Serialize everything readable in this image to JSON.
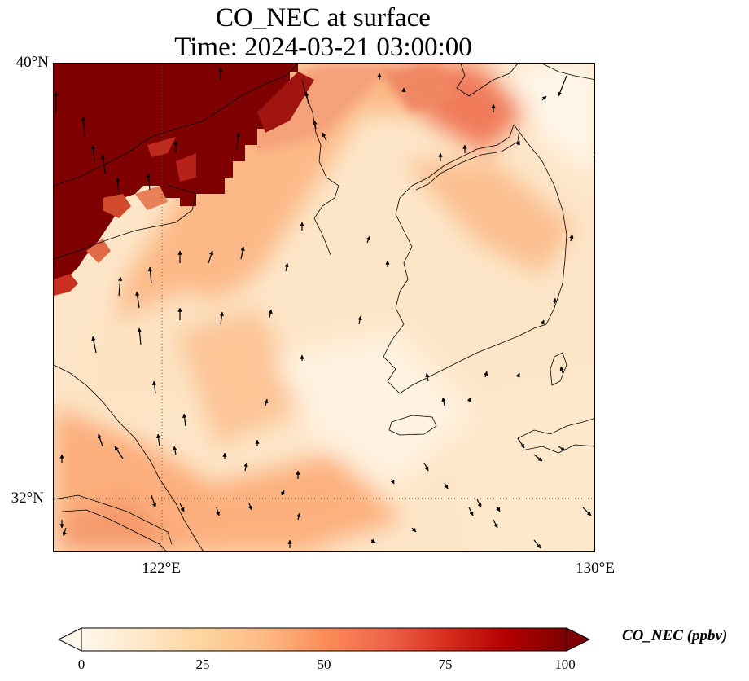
{
  "title": {
    "line1": "CO_NEC at surface",
    "line2": "Time: 2024-03-21 03:00:00"
  },
  "map": {
    "lat_labels": [
      "40°N",
      "32°N"
    ],
    "lon_labels": [
      "122°E",
      "130°E"
    ],
    "extent": {
      "lon_min": 120,
      "lon_max": 130,
      "lat_min": 31,
      "lat_max": 40
    },
    "gridlines": {
      "lon": [
        122
      ],
      "lat": [
        32
      ],
      "style": "dotted"
    },
    "field_colors": {
      "saturated": "#7f0000",
      "high": "#d7301f",
      "mid": "#fc8d59",
      "low": "#fdd49e",
      "bg": "#fff7ec"
    },
    "wind_vectors": "black arrows"
  },
  "colorbar": {
    "ticks": [
      "0",
      "25",
      "50",
      "75",
      "100"
    ],
    "label": "CO_NEC (ppbv)",
    "range": [
      0,
      100
    ],
    "extend": "both",
    "cmap": "OrRd"
  }
}
